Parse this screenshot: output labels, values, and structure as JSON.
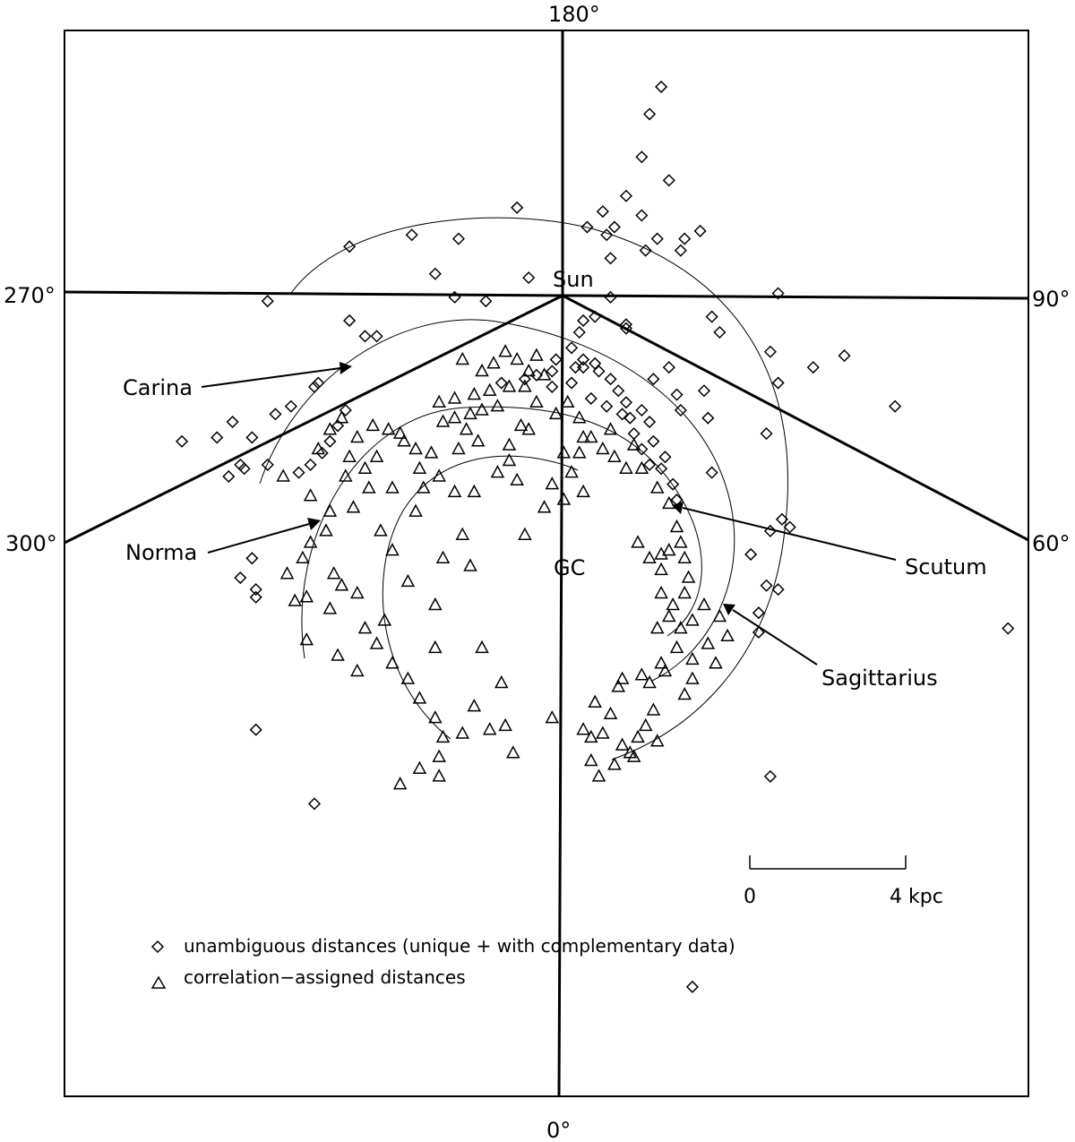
{
  "chart_data": {
    "type": "scatter",
    "title": "",
    "longitude_labels": {
      "top": "180°",
      "bottom": "0°",
      "left_upper": "270°",
      "right_upper": "90°",
      "left_lower": "300°",
      "right_lower": "60°"
    },
    "markers": {
      "sun": "Sun",
      "gc": "GC"
    },
    "units": "kpc",
    "scale_bar": {
      "start_label": "0",
      "end_label": "4 kpc",
      "length_kpc": 4
    },
    "legend": {
      "placement": "bottom-left",
      "entries": [
        {
          "symbol": "diamond",
          "label": "unambiguous distances (unique + with complementary data)"
        },
        {
          "symbol": "triangle",
          "label": "correlation−assigned distances"
        }
      ]
    },
    "arms": [
      {
        "name": "Carina"
      },
      {
        "name": "Norma"
      },
      {
        "name": "Scutum"
      },
      {
        "name": "Sagittarius"
      }
    ],
    "series": [
      {
        "name": "unambiguous distances (unique + with complementary data)",
        "symbol": "diamond",
        "points": [
          [
            2.6,
            12.3
          ],
          [
            2.3,
            11.6
          ],
          [
            2.1,
            10.5
          ],
          [
            1.7,
            9.5
          ],
          [
            2.8,
            9.9
          ],
          [
            2.1,
            9.0
          ],
          [
            1.1,
            9.1
          ],
          [
            1.4,
            8.7
          ],
          [
            0.7,
            8.7
          ],
          [
            1.2,
            8.5
          ],
          [
            2.5,
            8.4
          ],
          [
            3.2,
            8.4
          ],
          [
            3.6,
            8.6
          ],
          [
            3.1,
            8.1
          ],
          [
            2.2,
            8.1
          ],
          [
            1.3,
            7.9
          ],
          [
            -1.1,
            9.2
          ],
          [
            -3.8,
            8.5
          ],
          [
            -5.4,
            8.2
          ],
          [
            -2.6,
            8.4
          ],
          [
            -3.2,
            7.5
          ],
          [
            -0.8,
            7.4
          ],
          [
            -1.9,
            6.8
          ],
          [
            -2.7,
            6.9
          ],
          [
            -7.5,
            6.8
          ],
          [
            -5.4,
            6.3
          ],
          [
            -5.0,
            5.9
          ],
          [
            -4.7,
            5.9
          ],
          [
            0.6,
            6.3
          ],
          [
            1.7,
            6.2
          ],
          [
            3.9,
            6.4
          ],
          [
            5.6,
            7.0
          ],
          [
            4.1,
            6.0
          ],
          [
            5.4,
            5.5
          ],
          [
            7.3,
            5.4
          ],
          [
            6.5,
            5.1
          ],
          [
            5.6,
            4.7
          ],
          [
            8.6,
            4.1
          ],
          [
            2.8,
            5.1
          ],
          [
            2.4,
            4.8
          ],
          [
            3.0,
            4.4
          ],
          [
            3.1,
            4.0
          ],
          [
            3.7,
            4.5
          ],
          [
            3.8,
            3.8
          ],
          [
            -6.2,
            4.7
          ],
          [
            -6.3,
            4.6
          ],
          [
            -6.9,
            4.1
          ],
          [
            -7.3,
            3.9
          ],
          [
            -8.4,
            3.7
          ],
          [
            -8.8,
            3.3
          ],
          [
            -9.7,
            3.2
          ],
          [
            -7.9,
            3.3
          ],
          [
            -7.5,
            2.6
          ],
          [
            -8.2,
            2.6
          ],
          [
            -8.1,
            2.5
          ],
          [
            -8.5,
            2.3
          ],
          [
            5.3,
            3.4
          ],
          [
            3.9,
            2.4
          ],
          [
            5.7,
            1.2
          ],
          [
            5.9,
            1.0
          ],
          [
            5.4,
            0.9
          ],
          [
            4.9,
            0.3
          ],
          [
            5.3,
            -0.5
          ],
          [
            5.1,
            -1.2
          ],
          [
            5.1,
            -1.7
          ],
          [
            5.6,
            -0.6
          ],
          [
            11.5,
            -1.6
          ],
          [
            -7.9,
            0.2
          ],
          [
            -8.2,
            -0.3
          ],
          [
            -7.8,
            -0.6
          ],
          [
            -7.8,
            -0.8
          ],
          [
            -7.8,
            -4.2
          ],
          [
            -6.3,
            -6.1
          ],
          [
            5.4,
            -5.4
          ],
          [
            3.4,
            -10.8
          ],
          [
            -1.5,
            4.7
          ],
          [
            -0.9,
            4.8
          ],
          [
            -0.6,
            4.9
          ],
          [
            -0.2,
            5.0
          ],
          [
            0.4,
            5.1
          ],
          [
            0.6,
            5.1
          ],
          [
            1.0,
            5.0
          ],
          [
            1.3,
            4.8
          ],
          [
            1.5,
            4.5
          ],
          [
            1.7,
            4.2
          ],
          [
            1.8,
            3.8
          ],
          [
            1.9,
            3.4
          ],
          [
            2.1,
            3.0
          ],
          [
            2.3,
            2.6
          ],
          [
            2.6,
            2.5
          ],
          [
            2.9,
            2.1
          ],
          [
            3.0,
            1.7
          ],
          [
            0.6,
            5.3
          ],
          [
            0.9,
            5.2
          ],
          [
            0.3,
            5.6
          ],
          [
            0.5,
            6.0
          ],
          [
            0.9,
            6.4
          ],
          [
            1.3,
            6.9
          ],
          [
            1.7,
            6.1
          ],
          [
            -0.1,
            5.3
          ],
          [
            -0.2,
            4.6
          ],
          [
            0.3,
            4.7
          ],
          [
            0.8,
            4.3
          ],
          [
            1.2,
            4.1
          ],
          [
            2.4,
            3.2
          ],
          [
            2.7,
            2.8
          ],
          [
            2.3,
            3.7
          ],
          [
            2.1,
            4.0
          ],
          [
            1.6,
            3.9
          ],
          [
            -5.5,
            4.0
          ],
          [
            -5.7,
            3.6
          ],
          [
            -5.9,
            3.2
          ],
          [
            -6.1,
            2.9
          ],
          [
            -6.4,
            2.6
          ],
          [
            -6.7,
            2.4
          ]
        ]
      },
      {
        "name": "correlation−assigned distances",
        "symbol": "triangle",
        "points": [
          [
            -2.5,
            5.3
          ],
          [
            -2.0,
            5.0
          ],
          [
            -1.7,
            5.2
          ],
          [
            -1.4,
            5.5
          ],
          [
            -1.1,
            5.3
          ],
          [
            -0.8,
            5.0
          ],
          [
            -0.6,
            5.4
          ],
          [
            -0.4,
            4.9
          ],
          [
            -0.9,
            4.6
          ],
          [
            -1.3,
            4.6
          ],
          [
            -1.8,
            4.5
          ],
          [
            -2.2,
            4.4
          ],
          [
            -2.7,
            4.3
          ],
          [
            -3.1,
            4.2
          ],
          [
            -1.6,
            4.1
          ],
          [
            -2.0,
            4.0
          ],
          [
            -2.3,
            3.9
          ],
          [
            -2.7,
            3.8
          ],
          [
            -3.0,
            3.7
          ],
          [
            -2.4,
            3.5
          ],
          [
            -2.1,
            3.2
          ],
          [
            -2.6,
            3.0
          ],
          [
            -3.3,
            2.9
          ],
          [
            -3.7,
            3.0
          ],
          [
            -4.0,
            3.2
          ],
          [
            -4.4,
            3.5
          ],
          [
            -4.8,
            3.6
          ],
          [
            -5.2,
            3.3
          ],
          [
            -5.6,
            3.8
          ],
          [
            -5.9,
            3.5
          ],
          [
            -6.2,
            3.0
          ],
          [
            -4.7,
            2.8
          ],
          [
            -5.0,
            2.5
          ],
          [
            -5.5,
            2.3
          ],
          [
            -4.3,
            2.0
          ],
          [
            -4.9,
            2.0
          ],
          [
            -3.6,
            2.5
          ],
          [
            -3.1,
            2.3
          ],
          [
            -2.7,
            1.9
          ],
          [
            -2.2,
            1.9
          ],
          [
            -1.6,
            2.4
          ],
          [
            -1.3,
            2.7
          ],
          [
            -1.1,
            2.2
          ],
          [
            -0.8,
            3.5
          ],
          [
            -0.6,
            4.2
          ],
          [
            -0.1,
            3.9
          ],
          [
            0.2,
            4.2
          ],
          [
            0.5,
            3.8
          ],
          [
            0.8,
            3.3
          ],
          [
            1.1,
            3.0
          ],
          [
            1.4,
            2.8
          ],
          [
            1.7,
            2.5
          ],
          [
            2.1,
            2.5
          ],
          [
            2.5,
            2.0
          ],
          [
            2.8,
            1.6
          ],
          [
            3.0,
            1.0
          ],
          [
            3.1,
            0.6
          ],
          [
            3.2,
            0.2
          ],
          [
            3.3,
            -0.3
          ],
          [
            3.2,
            -0.7
          ],
          [
            2.9,
            -1.0
          ],
          [
            2.6,
            -0.7
          ],
          [
            2.8,
            -1.3
          ],
          [
            3.1,
            -1.6
          ],
          [
            3.4,
            -1.4
          ],
          [
            3.7,
            -1.0
          ],
          [
            4.1,
            -1.3
          ],
          [
            4.3,
            -1.8
          ],
          [
            3.8,
            -2.0
          ],
          [
            3.4,
            -2.4
          ],
          [
            3.0,
            -2.1
          ],
          [
            2.6,
            -2.5
          ],
          [
            2.3,
            -3.0
          ],
          [
            2.4,
            -3.7
          ],
          [
            2.2,
            -4.1
          ],
          [
            2.0,
            -4.4
          ],
          [
            1.8,
            -4.8
          ],
          [
            1.4,
            -5.1
          ],
          [
            1.0,
            -5.4
          ],
          [
            0.8,
            -5.0
          ],
          [
            1.1,
            -4.3
          ],
          [
            1.3,
            -3.8
          ],
          [
            1.6,
            -4.6
          ],
          [
            2.5,
            -4.5
          ],
          [
            1.9,
            -4.9
          ],
          [
            3.2,
            -3.3
          ],
          [
            3.4,
            -2.9
          ],
          [
            4.0,
            -2.5
          ],
          [
            -5.9,
            1.4
          ],
          [
            -6.0,
            0.9
          ],
          [
            -6.4,
            0.6
          ],
          [
            -6.6,
            0.2
          ],
          [
            -7.0,
            -0.2
          ],
          [
            -6.8,
            -0.9
          ],
          [
            -5.9,
            -1.1
          ],
          [
            -5.6,
            -0.5
          ],
          [
            -5.2,
            -0.7
          ],
          [
            -5.0,
            -1.6
          ],
          [
            -4.7,
            -2.0
          ],
          [
            -4.3,
            -2.5
          ],
          [
            -3.9,
            -2.9
          ],
          [
            -3.6,
            -3.4
          ],
          [
            -3.2,
            -3.9
          ],
          [
            -3.0,
            -4.4
          ],
          [
            -3.1,
            -4.9
          ],
          [
            -3.6,
            -5.2
          ],
          [
            -4.1,
            -5.6
          ],
          [
            -3.1,
            -5.4
          ],
          [
            -2.5,
            -4.3
          ],
          [
            -2.0,
            -2.1
          ],
          [
            -1.5,
            -3.0
          ],
          [
            -1.4,
            -4.1
          ],
          [
            -1.2,
            -4.8
          ],
          [
            -0.2,
            -3.9
          ],
          [
            -5.7,
            -2.3
          ],
          [
            -5.2,
            -2.7
          ],
          [
            -4.5,
            -1.4
          ],
          [
            -3.2,
            -1.0
          ],
          [
            -3.9,
            -0.4
          ],
          [
            -4.3,
            0.4
          ],
          [
            -3.0,
            0.2
          ],
          [
            -2.5,
            0.8
          ],
          [
            -3.5,
            2.0
          ],
          [
            -2.3,
            0.0
          ],
          [
            -3.7,
            1.4
          ],
          [
            0.1,
            2.9
          ],
          [
            0.3,
            2.4
          ],
          [
            0.6,
            1.9
          ],
          [
            0.1,
            1.7
          ],
          [
            2.0,
            0.6
          ],
          [
            2.3,
            0.2
          ],
          [
            2.6,
            0.3
          ],
          [
            2.6,
            -0.1
          ],
          [
            2.8,
            0.4
          ],
          [
            2.5,
            -1.6
          ],
          [
            2.1,
            -2.8
          ],
          [
            1.5,
            -3.1
          ],
          [
            0.9,
            -3.5
          ],
          [
            0.6,
            -4.2
          ],
          [
            0.8,
            -4.4
          ],
          [
            1.6,
            -2.9
          ],
          [
            2.7,
            -2.7
          ],
          [
            -0.9,
            0.8
          ],
          [
            -0.4,
            1.5
          ],
          [
            0.5,
            2.9
          ],
          [
            -6.5,
            -1.9
          ],
          [
            -6.5,
            -0.8
          ],
          [
            -5.8,
            -0.2
          ],
          [
            -4.6,
            0.9
          ],
          [
            -3.2,
            -2.1
          ],
          [
            -2.2,
            -3.6
          ],
          [
            -1.8,
            -4.2
          ],
          [
            -7.1,
            2.3
          ],
          [
            -6.4,
            1.8
          ],
          [
            -5.3,
            1.5
          ],
          [
            -5.4,
            2.8
          ],
          [
            -4.1,
            3.4
          ],
          [
            -1.0,
            3.6
          ],
          [
            -1.3,
            3.1
          ],
          [
            -0.2,
            2.1
          ],
          [
            0.6,
            3.3
          ],
          [
            1.3,
            3.5
          ],
          [
            1.9,
            3.1
          ]
        ]
      }
    ]
  }
}
